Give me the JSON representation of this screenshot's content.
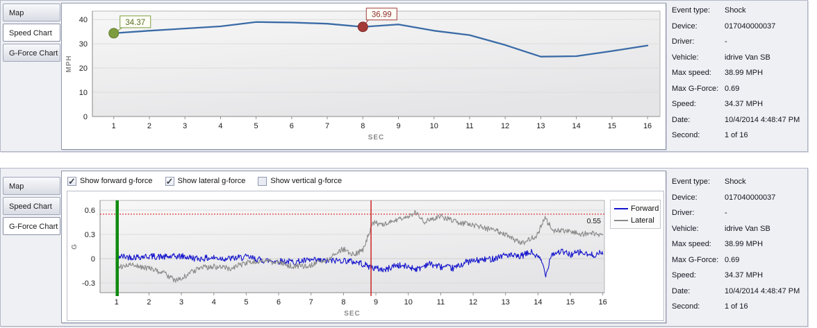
{
  "icons": {
    "check_glyph": "✓"
  },
  "panels": [
    {
      "id": "speed",
      "tabs": [
        {
          "label": "Map",
          "active": false
        },
        {
          "label": "Speed Chart",
          "active": true
        },
        {
          "label": "G-Force Chart",
          "active": false
        }
      ],
      "chart_index": 0,
      "info": {
        "rows": [
          {
            "label": "Event type:",
            "value": "Shock"
          },
          {
            "label": "Device:",
            "value": "017040000037"
          },
          {
            "label": "Driver:",
            "value": "-"
          },
          {
            "label": "Vehicle:",
            "value": "idrive Van SB"
          },
          {
            "label": "Max speed:",
            "value": "38.99 MPH"
          },
          {
            "label": "Max G-Force:",
            "value": "0.69"
          },
          {
            "label": "Speed:",
            "value": "34.37 MPH"
          },
          {
            "label": "Date:",
            "value": "10/4/2014 4:48:47 PM"
          },
          {
            "label": "Second:",
            "value": "1 of 16"
          }
        ]
      }
    },
    {
      "id": "gforce",
      "tabs": [
        {
          "label": "Map",
          "active": false
        },
        {
          "label": "Speed Chart",
          "active": false
        },
        {
          "label": "G-Force Chart",
          "active": true
        }
      ],
      "checkboxes": [
        {
          "label": "Show forward g-force",
          "checked": true
        },
        {
          "label": "Show lateral g-force",
          "checked": true
        },
        {
          "label": "Show vertical g-force",
          "checked": false
        }
      ],
      "chart_index": 1,
      "info": {
        "rows": [
          {
            "label": "Event type:",
            "value": "Shock"
          },
          {
            "label": "Device:",
            "value": "017040000037"
          },
          {
            "label": "Driver:",
            "value": "-"
          },
          {
            "label": "Vehicle:",
            "value": "idrive Van SB"
          },
          {
            "label": "Max speed:",
            "value": "38.99 MPH"
          },
          {
            "label": "Max G-Force:",
            "value": "0.69"
          },
          {
            "label": "Speed:",
            "value": "34.37 MPH"
          },
          {
            "label": "Date:",
            "value": "10/4/2014 4:48:47 PM"
          },
          {
            "label": "Second:",
            "value": "1 of 16"
          }
        ]
      }
    }
  ],
  "chart_data": [
    {
      "type": "line",
      "title": "Speed Chart",
      "xlabel": "SEC",
      "ylabel": "MPH",
      "x": [
        1,
        2,
        3,
        4,
        5,
        6,
        7,
        8,
        9,
        10,
        11,
        12,
        13,
        14,
        15,
        16
      ],
      "xticks": [
        1,
        2,
        3,
        4,
        5,
        6,
        7,
        8,
        9,
        10,
        11,
        12,
        13,
        14,
        15,
        16
      ],
      "yticks": [
        0,
        10,
        20,
        30,
        40
      ],
      "xlim": [
        0.4,
        16.35
      ],
      "ylim": [
        0,
        43.5
      ],
      "grid": "horizontal",
      "legend_position": "none",
      "series": [
        {
          "name": "Speed",
          "color": "#3a6ba6",
          "width": 2.3,
          "values": [
            34.37,
            35.4,
            36.3,
            37.2,
            38.99,
            38.8,
            38.3,
            36.99,
            38.0,
            35.4,
            33.6,
            29.5,
            24.7,
            24.9,
            27.0,
            29.3
          ]
        }
      ],
      "markers": [
        {
          "x": 1,
          "y": 34.37,
          "label": "34.37",
          "color": "#7d9b3f",
          "stroke": "#64802f",
          "label_color": "#5a6c21"
        },
        {
          "x": 8,
          "y": 36.99,
          "label": "36.99",
          "color": "#a33a38",
          "stroke": "#7d2a28",
          "label_color": "#8c2f2d"
        }
      ]
    },
    {
      "type": "line",
      "title": "G-Force Chart",
      "xlabel": "SEC",
      "ylabel": "G",
      "xticks": [
        1,
        2,
        3,
        4,
        5,
        6,
        7,
        8,
        9,
        10,
        11,
        12,
        13,
        14,
        15,
        16
      ],
      "yticks": [
        -0.3,
        0,
        0.3,
        0.6
      ],
      "ytick_labels": [
        "-0.3",
        "0",
        "0.3",
        "0.6"
      ],
      "xlim": [
        0.49,
        16.05
      ],
      "ylim": [
        -0.42,
        0.72
      ],
      "grid": "horizontal",
      "legend_position": "right",
      "noise_seed": 42,
      "noise_dt": 0.02,
      "series": [
        {
          "name": "Forward",
          "color": "#1414cc",
          "width": 1.1,
          "noise": 0.04,
          "seed_offset": 0,
          "anchors": [
            [
              1,
              0.03
            ],
            [
              1.5,
              0.02
            ],
            [
              2,
              0.03
            ],
            [
              2.5,
              0.02
            ],
            [
              3,
              0.03
            ],
            [
              3.5,
              0
            ],
            [
              4,
              0.01
            ],
            [
              4.5,
              0
            ],
            [
              5,
              0.02
            ],
            [
              5.5,
              -0.02
            ],
            [
              6,
              -0.03
            ],
            [
              6.5,
              -0.04
            ],
            [
              7,
              -0.02
            ],
            [
              7.5,
              -0.03
            ],
            [
              8,
              -0.02
            ],
            [
              8.5,
              -0.05
            ],
            [
              8.8,
              -0.1
            ],
            [
              9,
              -0.12
            ],
            [
              9.3,
              -0.14
            ],
            [
              9.6,
              -0.08
            ],
            [
              10,
              -0.1
            ],
            [
              10.3,
              -0.13
            ],
            [
              10.6,
              -0.06
            ],
            [
              11,
              -0.1
            ],
            [
              11.4,
              -0.12
            ],
            [
              11.8,
              -0.04
            ],
            [
              12.2,
              -0.02
            ],
            [
              12.6,
              0
            ],
            [
              13,
              0.05
            ],
            [
              13.4,
              0.02
            ],
            [
              13.8,
              0.08
            ],
            [
              14.1,
              -0.02
            ],
            [
              14.25,
              -0.2
            ],
            [
              14.4,
              0.05
            ],
            [
              14.7,
              0.09
            ],
            [
              15,
              0.05
            ],
            [
              15.3,
              0.08
            ],
            [
              15.6,
              0.04
            ],
            [
              16,
              0.07
            ]
          ]
        },
        {
          "name": "Lateral",
          "color": "#8a8a8a",
          "width": 1.1,
          "noise": 0.035,
          "seed_offset": 7,
          "anchors": [
            [
              1,
              -0.1
            ],
            [
              1.5,
              -0.08
            ],
            [
              2,
              -0.12
            ],
            [
              2.5,
              -0.18
            ],
            [
              2.8,
              -0.28
            ],
            [
              3,
              -0.25
            ],
            [
              3.5,
              -0.12
            ],
            [
              4,
              -0.1
            ],
            [
              4.5,
              -0.12
            ],
            [
              5,
              -0.05
            ],
            [
              5.5,
              -0.03
            ],
            [
              6,
              -0.05
            ],
            [
              6.5,
              -0.1
            ],
            [
              7,
              -0.08
            ],
            [
              7.5,
              -0.02
            ],
            [
              7.8,
              0.08
            ],
            [
              8,
              0.12
            ],
            [
              8.3,
              0.05
            ],
            [
              8.6,
              0.1
            ],
            [
              8.9,
              0.45
            ],
            [
              9.2,
              0.42
            ],
            [
              9.5,
              0.45
            ],
            [
              9.8,
              0.5
            ],
            [
              10,
              0.52
            ],
            [
              10.2,
              0.58
            ],
            [
              10.5,
              0.45
            ],
            [
              10.8,
              0.5
            ],
            [
              11,
              0.52
            ],
            [
              11.3,
              0.48
            ],
            [
              11.5,
              0.45
            ],
            [
              12,
              0.42
            ],
            [
              12.3,
              0.38
            ],
            [
              12.7,
              0.35
            ],
            [
              13,
              0.3
            ],
            [
              13.3,
              0.22
            ],
            [
              13.6,
              0.2
            ],
            [
              13.8,
              0.25
            ],
            [
              14,
              0.3
            ],
            [
              14.2,
              0.5
            ],
            [
              14.5,
              0.35
            ],
            [
              15,
              0.35
            ],
            [
              15.3,
              0.3
            ],
            [
              15.7,
              0.32
            ],
            [
              16,
              0.28
            ]
          ]
        }
      ],
      "vlines": [
        {
          "x": 1.02,
          "color": "#0f8a0f",
          "width": 4.5
        },
        {
          "x": 8.85,
          "color": "#cc2222",
          "width": 1.5
        }
      ],
      "hline": {
        "y": 0.55,
        "color": "#dd2020",
        "style": "dotted",
        "label": "0.55",
        "label_color": "#111111"
      }
    }
  ]
}
